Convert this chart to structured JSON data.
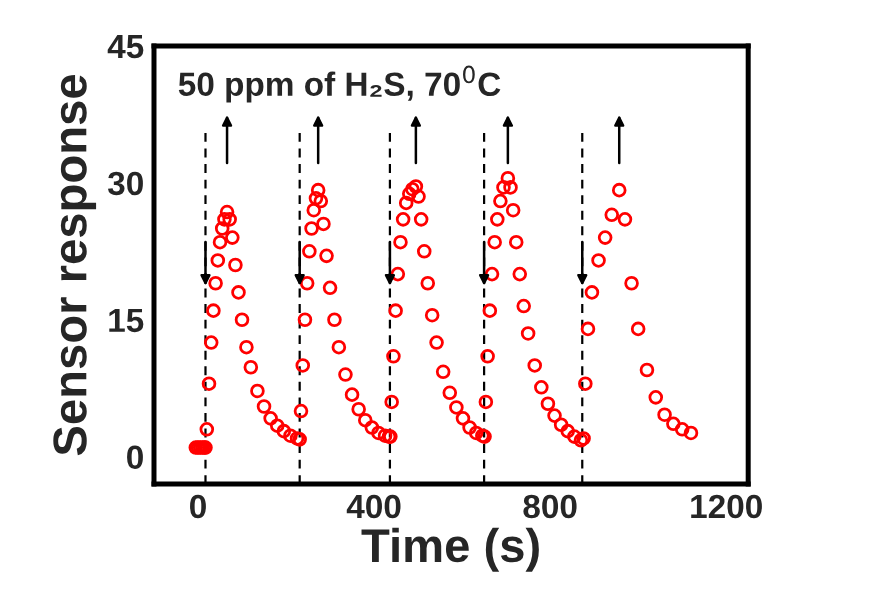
{
  "chart_data": {
    "type": "scatter",
    "title": "50 ppm of H₂S, 70$^{0}$C",
    "xlabel": "Time (s)",
    "ylabel": "Sensor response",
    "marker": "circle",
    "grid": false,
    "legend": false,
    "xlim": [
      -100,
      1250
    ],
    "xticks": [
      0,
      400,
      800,
      1200
    ],
    "ylim": [
      -3,
      45
    ],
    "yticks": [
      0,
      15,
      30,
      45
    ],
    "ref_lines": [
      {
        "axis": "x",
        "value": 17,
        "color": "#000000",
        "line_style": "dashed"
      },
      {
        "axis": "x",
        "value": 231,
        "color": "#000000",
        "line_style": "dashed"
      },
      {
        "axis": "x",
        "value": 436,
        "color": "#000000",
        "line_style": "dashed"
      },
      {
        "axis": "x",
        "value": 650,
        "color": "#000000",
        "line_style": "dashed"
      },
      {
        "axis": "x",
        "value": 873,
        "color": "#000000",
        "line_style": "dashed"
      }
    ],
    "series": [
      {
        "color": "#ff0000",
        "x": [
          -5,
          0,
          5,
          10,
          15,
          17,
          20,
          25,
          30,
          35,
          40,
          45,
          50,
          55,
          60,
          66,
          72,
          78,
          85,
          92,
          100,
          110,
          120,
          135,
          150,
          165,
          180,
          195,
          210,
          225,
          231,
          234,
          238,
          243,
          248,
          253,
          258,
          263,
          268,
          273,
          279,
          285,
          292,
          300,
          310,
          320,
          335,
          350,
          365,
          380,
          395,
          410,
          425,
          434,
          437,
          440,
          444,
          449,
          454,
          460,
          466,
          473,
          480,
          487,
          495,
          501,
          507,
          514,
          522,
          532,
          542,
          557,
          572,
          587,
          602,
          617,
          632,
          646,
          651,
          654,
          658,
          663,
          668,
          674,
          680,
          687,
          694,
          704,
          710,
          716,
          723,
          731,
          740,
          750,
          765,
          780,
          795,
          810,
          825,
          840,
          855,
          870,
          876,
          880,
          886,
          895,
          910,
          925,
          940,
          957,
          970,
          985,
          1000,
          1020,
          1040,
          1060,
          1080,
          1100,
          1120
        ],
        "values": [
          1.0,
          1.0,
          1.0,
          1.0,
          1.0,
          1.0,
          3,
          8,
          12.5,
          16,
          19,
          21.5,
          23.5,
          25,
          26,
          26.8,
          26,
          24,
          21,
          18,
          15,
          12,
          9.8,
          7.2,
          5.5,
          4.2,
          3.4,
          2.8,
          2.3,
          2.0,
          1.9,
          5,
          10,
          15,
          19,
          22.5,
          25,
          27,
          28.3,
          29.2,
          28,
          25.5,
          22,
          18.5,
          15,
          12,
          9,
          6.8,
          5.2,
          4,
          3.2,
          2.6,
          2.3,
          2.2,
          2.2,
          6,
          11,
          16,
          20,
          23.5,
          26,
          27.8,
          28.8,
          29.3,
          29.6,
          28.5,
          26,
          22.5,
          19,
          15.5,
          12.5,
          9.3,
          7,
          5.4,
          4.2,
          3.2,
          2.6,
          2.3,
          2.2,
          6,
          11,
          16,
          20,
          23.5,
          26,
          28,
          29.5,
          30.5,
          29.5,
          27,
          23.5,
          20,
          16.5,
          13.5,
          10,
          7.6,
          5.8,
          4.5,
          3.5,
          2.8,
          2.2,
          1.8,
          2,
          8,
          14,
          18,
          21.5,
          24,
          26.5,
          29.2,
          26,
          19,
          14,
          9.5,
          6.5,
          4.6,
          3.6,
          3.0,
          2.6
        ]
      }
    ]
  }
}
